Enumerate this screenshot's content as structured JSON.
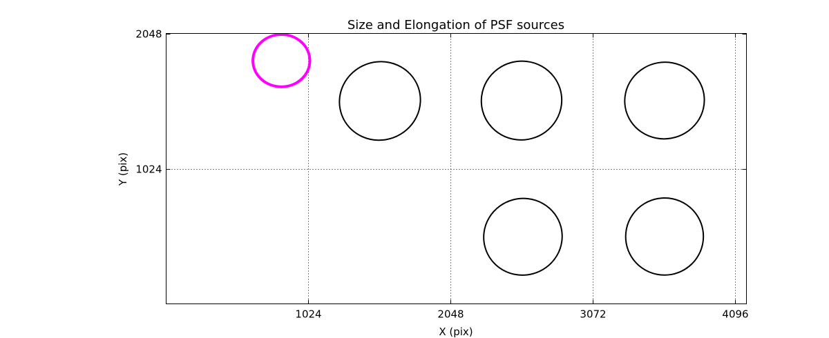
{
  "chart_data": {
    "type": "scatter",
    "title": "Size and Elongation of PSF sources",
    "xlabel": "X (pix)",
    "ylabel": "Y (pix)",
    "xlim": [
      0,
      4180
    ],
    "ylim": [
      0,
      2048
    ],
    "x_ticks": [
      1024,
      2048,
      3072,
      4096
    ],
    "y_ticks": [
      1024,
      2048
    ],
    "grid": true,
    "ellipses": [
      {
        "x": 830,
        "y": 1842,
        "rx": 205,
        "ry": 198,
        "angle": 0,
        "color": "#ff00ff",
        "width": 4
      },
      {
        "x": 1540,
        "y": 1537,
        "rx": 293,
        "ry": 296,
        "angle": -20,
        "color": "#000000",
        "width": 2
      },
      {
        "x": 2560,
        "y": 1540,
        "rx": 290,
        "ry": 298,
        "angle": -15,
        "color": "#000000",
        "width": 2
      },
      {
        "x": 3590,
        "y": 1540,
        "rx": 287,
        "ry": 290,
        "angle": -10,
        "color": "#000000",
        "width": 2
      },
      {
        "x": 2570,
        "y": 508,
        "rx": 283,
        "ry": 290,
        "angle": -15,
        "color": "#000000",
        "width": 2
      },
      {
        "x": 3590,
        "y": 510,
        "rx": 280,
        "ry": 292,
        "angle": -10,
        "color": "#000000",
        "width": 2
      }
    ]
  }
}
